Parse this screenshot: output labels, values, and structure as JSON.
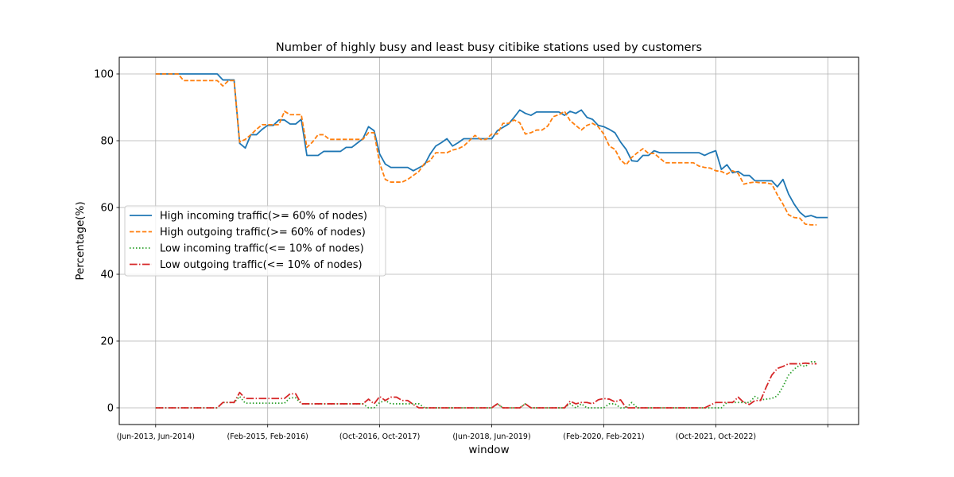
{
  "chart_data": {
    "type": "line",
    "title": "Number of highly busy and least busy citibike stations used by customers",
    "xlabel": "window",
    "ylabel": "Percentage(%)",
    "ylim": [
      -5,
      105
    ],
    "yticks": [
      0,
      20,
      40,
      60,
      80,
      100
    ],
    "xlim": [
      -6.5,
      125.5
    ],
    "xticks": [
      {
        "index": 0,
        "label": "(Jun-2013, Jun-2014)"
      },
      {
        "index": 20,
        "label": "(Feb-2015, Feb-2016)"
      },
      {
        "index": 40,
        "label": "(Oct-2016, Oct-2017)"
      },
      {
        "index": 60,
        "label": "(Jun-2018, Jun-2019)"
      },
      {
        "index": 80,
        "label": "(Feb-2020, Feb-2021)"
      },
      {
        "index": 100,
        "label": "(Oct-2021, Oct-2022)"
      },
      {
        "index": 120,
        "label": ""
      }
    ],
    "grid": true,
    "legend_position": "center-left",
    "series": [
      {
        "name": "High incoming traffic(>= 60% of nodes)",
        "color": "#1f77b4",
        "style": "solid",
        "points": [
          [
            0,
            100
          ],
          [
            11,
            100
          ],
          [
            12,
            98.2
          ],
          [
            14,
            98.2
          ],
          [
            15,
            79.2
          ],
          [
            16,
            77.8
          ],
          [
            17,
            81.8
          ],
          [
            18,
            81.8
          ],
          [
            19,
            83.4
          ],
          [
            20,
            84.6
          ],
          [
            21,
            84.6
          ],
          [
            22,
            86.2
          ],
          [
            23,
            86.2
          ],
          [
            24,
            85
          ],
          [
            25,
            85
          ],
          [
            26,
            86.4
          ],
          [
            27,
            75.6
          ],
          [
            29,
            75.6
          ],
          [
            30,
            76.8
          ],
          [
            33,
            76.8
          ],
          [
            34,
            78
          ],
          [
            35,
            78
          ],
          [
            37,
            80.6
          ],
          [
            38,
            84.2
          ],
          [
            39,
            83
          ],
          [
            40,
            76
          ],
          [
            41,
            73
          ],
          [
            42,
            72
          ],
          [
            45,
            72
          ],
          [
            46,
            71
          ],
          [
            48,
            72.8
          ],
          [
            49,
            76
          ],
          [
            50,
            78.4
          ],
          [
            51,
            79.4
          ],
          [
            52,
            80.6
          ],
          [
            53,
            78.4
          ],
          [
            54,
            79.4
          ],
          [
            55,
            80.6
          ],
          [
            60,
            80.6
          ],
          [
            61,
            83
          ],
          [
            63,
            85
          ],
          [
            64,
            87
          ],
          [
            65,
            89.2
          ],
          [
            66,
            88.2
          ],
          [
            67,
            87.6
          ],
          [
            68,
            88.6
          ],
          [
            72,
            88.6
          ],
          [
            73,
            87.6
          ],
          [
            74,
            88.8
          ],
          [
            75,
            88.2
          ],
          [
            76,
            89.2
          ],
          [
            77,
            87
          ],
          [
            78,
            86.4
          ],
          [
            79,
            84.6
          ],
          [
            80,
            84.2
          ],
          [
            81,
            83.4
          ],
          [
            82,
            82.4
          ],
          [
            83,
            79.6
          ],
          [
            84,
            77.4
          ],
          [
            85,
            74
          ],
          [
            86,
            73.8
          ],
          [
            87,
            75.6
          ],
          [
            88,
            75.6
          ],
          [
            89,
            77
          ],
          [
            90,
            76.4
          ],
          [
            97,
            76.4
          ],
          [
            98,
            75.6
          ],
          [
            99,
            76.4
          ],
          [
            100,
            77
          ],
          [
            101,
            71.4
          ],
          [
            102,
            72.8
          ],
          [
            103,
            70.4
          ],
          [
            104,
            70.8
          ],
          [
            105,
            69.6
          ],
          [
            106,
            69.6
          ],
          [
            107,
            68
          ],
          [
            110,
            68
          ],
          [
            111,
            66.2
          ],
          [
            112,
            68.4
          ],
          [
            113,
            64
          ],
          [
            114,
            61
          ],
          [
            115,
            58.6
          ],
          [
            116,
            57.2
          ],
          [
            117,
            57.6
          ],
          [
            118,
            57
          ],
          [
            120,
            57
          ]
        ]
      },
      {
        "name": "High outgoing traffic(>= 60% of nodes)",
        "color": "#ff7f0e",
        "style": "dashed",
        "points": [
          [
            0,
            100
          ],
          [
            4,
            100
          ],
          [
            5,
            98
          ],
          [
            11,
            98
          ],
          [
            12,
            96.4
          ],
          [
            13,
            98
          ],
          [
            14,
            98
          ],
          [
            15,
            79.6
          ],
          [
            16,
            80.4
          ],
          [
            17,
            81.8
          ],
          [
            18,
            83.4
          ],
          [
            19,
            84.8
          ],
          [
            22,
            84.8
          ],
          [
            23,
            88.8
          ],
          [
            24,
            87.8
          ],
          [
            26,
            87.8
          ],
          [
            27,
            78
          ],
          [
            28,
            79.6
          ],
          [
            29,
            81.8
          ],
          [
            30,
            81.8
          ],
          [
            31,
            80.4
          ],
          [
            37,
            80.4
          ],
          [
            38,
            82.4
          ],
          [
            39,
            82.4
          ],
          [
            40,
            73.2
          ],
          [
            41,
            68.4
          ],
          [
            42,
            67.6
          ],
          [
            44,
            67.6
          ],
          [
            45,
            68.4
          ],
          [
            46,
            69.6
          ],
          [
            47,
            70.8
          ],
          [
            48,
            73.2
          ],
          [
            49,
            74
          ],
          [
            50,
            76.4
          ],
          [
            52,
            76.4
          ],
          [
            53,
            77.2
          ],
          [
            54,
            77.6
          ],
          [
            55,
            78.4
          ],
          [
            56,
            80
          ],
          [
            57,
            81.6
          ],
          [
            58,
            80.4
          ],
          [
            59,
            80.4
          ],
          [
            60,
            82
          ],
          [
            61,
            82
          ],
          [
            62,
            85.2
          ],
          [
            63,
            85.2
          ],
          [
            64,
            86.2
          ],
          [
            65,
            85.4
          ],
          [
            66,
            82
          ],
          [
            67,
            82.4
          ],
          [
            68,
            83.2
          ],
          [
            69,
            83.2
          ],
          [
            70,
            84.4
          ],
          [
            71,
            87.2
          ],
          [
            72,
            87.8
          ],
          [
            73,
            88.8
          ],
          [
            74,
            86
          ],
          [
            75,
            84.6
          ],
          [
            76,
            83.2
          ],
          [
            77,
            84.6
          ],
          [
            78,
            85.2
          ],
          [
            79,
            84.2
          ],
          [
            80,
            82
          ],
          [
            81,
            78.4
          ],
          [
            82,
            77.4
          ],
          [
            83,
            74.2
          ],
          [
            84,
            72.8
          ],
          [
            85,
            75
          ],
          [
            86,
            76.4
          ],
          [
            87,
            77.6
          ],
          [
            88,
            76.2
          ],
          [
            89,
            76.2
          ],
          [
            90,
            74.8
          ],
          [
            91,
            73.4
          ],
          [
            96,
            73.4
          ],
          [
            97,
            72.4
          ],
          [
            98,
            72
          ],
          [
            99,
            71.8
          ],
          [
            100,
            71
          ],
          [
            101,
            70.8
          ],
          [
            102,
            70
          ],
          [
            103,
            71
          ],
          [
            104,
            70.2
          ],
          [
            105,
            67
          ],
          [
            106,
            67.4
          ],
          [
            107,
            67.6
          ],
          [
            108,
            67.4
          ],
          [
            109,
            67.4
          ],
          [
            110,
            67
          ],
          [
            111,
            63.8
          ],
          [
            112,
            61
          ],
          [
            113,
            57.8
          ],
          [
            114,
            57
          ],
          [
            115,
            56.8
          ],
          [
            116,
            55
          ],
          [
            117,
            54.8
          ],
          [
            118,
            54.8
          ]
        ]
      },
      {
        "name": "Low incoming traffic(<= 10% of nodes)",
        "color": "#2ca02c",
        "style": "dotted",
        "points": [
          [
            0,
            0
          ],
          [
            11,
            0
          ],
          [
            12,
            1.6
          ],
          [
            14,
            1.6
          ],
          [
            15,
            3.4
          ],
          [
            16,
            1.4
          ],
          [
            23,
            1.4
          ],
          [
            24,
            3
          ],
          [
            25,
            3
          ],
          [
            26,
            1.2
          ],
          [
            37,
            1.2
          ],
          [
            38,
            0
          ],
          [
            39,
            0
          ],
          [
            40,
            1.6
          ],
          [
            41,
            2.2
          ],
          [
            42,
            1.2
          ],
          [
            47,
            1.2
          ],
          [
            48,
            0
          ],
          [
            59,
            0
          ],
          [
            60,
            0
          ],
          [
            61,
            1.2
          ],
          [
            62,
            0
          ],
          [
            65,
            0
          ],
          [
            66,
            1.2
          ],
          [
            67,
            0
          ],
          [
            73,
            0
          ],
          [
            74,
            1.2
          ],
          [
            75,
            0
          ],
          [
            76,
            1.2
          ],
          [
            77,
            0
          ],
          [
            80,
            0
          ],
          [
            81,
            1.2
          ],
          [
            82,
            1.2
          ],
          [
            83,
            0
          ],
          [
            84,
            0
          ],
          [
            85,
            1.6
          ],
          [
            86,
            0
          ],
          [
            101,
            0
          ],
          [
            102,
            1.6
          ],
          [
            106,
            1.6
          ],
          [
            107,
            3.4
          ],
          [
            108,
            2.4
          ],
          [
            110,
            2.8
          ],
          [
            111,
            3.6
          ],
          [
            112,
            6.4
          ],
          [
            113,
            9.8
          ],
          [
            114,
            11.6
          ],
          [
            115,
            12.8
          ],
          [
            116,
            12.4
          ],
          [
            117,
            13.8
          ],
          [
            118,
            13.8
          ]
        ]
      },
      {
        "name": "Low outgoing traffic(<= 10% of nodes)",
        "color": "#d62728",
        "style": "dashdot",
        "points": [
          [
            0,
            0
          ],
          [
            11,
            0
          ],
          [
            12,
            1.6
          ],
          [
            14,
            1.6
          ],
          [
            15,
            4.6
          ],
          [
            16,
            2.8
          ],
          [
            23,
            2.8
          ],
          [
            24,
            4.2
          ],
          [
            25,
            4.2
          ],
          [
            26,
            1.2
          ],
          [
            37,
            1.2
          ],
          [
            38,
            2.6
          ],
          [
            39,
            1.2
          ],
          [
            40,
            3.4
          ],
          [
            41,
            2.2
          ],
          [
            42,
            3.2
          ],
          [
            43,
            3.2
          ],
          [
            44,
            2.2
          ],
          [
            45,
            2.2
          ],
          [
            46,
            1
          ],
          [
            47,
            0
          ],
          [
            59,
            0
          ],
          [
            60,
            0
          ],
          [
            61,
            1.2
          ],
          [
            62,
            0
          ],
          [
            65,
            0
          ],
          [
            66,
            1.2
          ],
          [
            67,
            0
          ],
          [
            73,
            0
          ],
          [
            74,
            2
          ],
          [
            75,
            1.2
          ],
          [
            76,
            1.6
          ],
          [
            77,
            1.6
          ],
          [
            78,
            1.2
          ],
          [
            79,
            2.4
          ],
          [
            80,
            2.8
          ],
          [
            81,
            2.6
          ],
          [
            82,
            1.8
          ],
          [
            83,
            2.4
          ],
          [
            84,
            0
          ],
          [
            97,
            0
          ],
          [
            98,
            0
          ],
          [
            99,
            0.8
          ],
          [
            100,
            1.6
          ],
          [
            103,
            1.6
          ],
          [
            104,
            3.2
          ],
          [
            105,
            1.6
          ],
          [
            106,
            1
          ],
          [
            107,
            2.2
          ],
          [
            108,
            2.2
          ],
          [
            109,
            6.2
          ],
          [
            110,
            9.8
          ],
          [
            111,
            11.8
          ],
          [
            112,
            12.4
          ],
          [
            113,
            13.2
          ],
          [
            114,
            13.2
          ],
          [
            115,
            13.2
          ],
          [
            116,
            13.4
          ],
          [
            117,
            13.2
          ],
          [
            118,
            13.2
          ]
        ]
      }
    ]
  }
}
